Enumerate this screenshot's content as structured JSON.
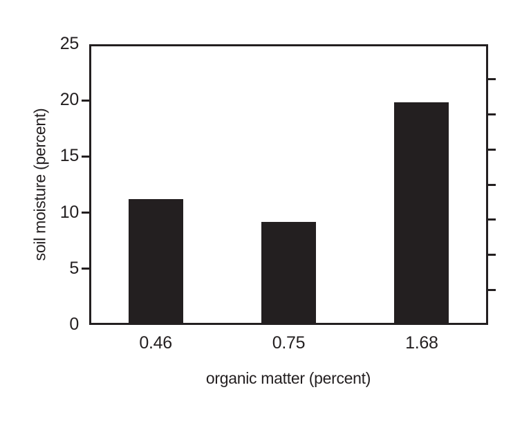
{
  "chart_data": {
    "type": "bar",
    "title": "",
    "categories": [
      "0.46",
      "0.75",
      "1.68"
    ],
    "values": [
      11.2,
      9.2,
      19.8
    ],
    "xlabel": "organic matter (percent)",
    "ylabel": "soil moisture (percent)",
    "ylim": [
      0,
      25
    ],
    "yticks": [
      0,
      5,
      10,
      15,
      20,
      25
    ],
    "right_axis_divisions": 8,
    "grid": false,
    "legend": null,
    "bar_color": "#231f20",
    "axis_color": "#231f20",
    "background_color": "#ffffff"
  }
}
